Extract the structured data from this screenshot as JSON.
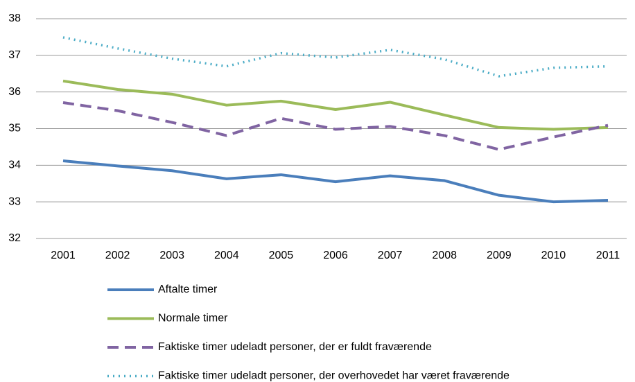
{
  "chart_data": {
    "type": "line",
    "categories": [
      "2001",
      "2002",
      "2003",
      "2004",
      "2005",
      "2006",
      "2007",
      "2008",
      "2009",
      "2010",
      "2011"
    ],
    "series": [
      {
        "name": "Aftalte timer",
        "color": "#4a7ebb",
        "dash": "solid",
        "values": [
          34.12,
          33.98,
          33.85,
          33.63,
          33.74,
          33.55,
          33.71,
          33.58,
          33.18,
          33.0,
          33.04
        ]
      },
      {
        "name": "Normale timer",
        "color": "#9bbb59",
        "dash": "solid",
        "values": [
          36.3,
          36.07,
          35.94,
          35.64,
          35.75,
          35.52,
          35.72,
          35.37,
          35.03,
          34.98,
          35.03
        ]
      },
      {
        "name": "Faktiske timer udeladt personer, der er fuldt fraværende",
        "color": "#8064a2",
        "dash": "dashed",
        "values": [
          35.71,
          35.49,
          35.17,
          34.81,
          35.28,
          34.98,
          35.06,
          34.81,
          34.43,
          34.77,
          35.09
        ]
      },
      {
        "name": "Faktiske timer udeladt personer, der overhovedet har været fraværende",
        "color": "#4bacc6",
        "dash": "dotted",
        "values": [
          37.49,
          37.19,
          36.91,
          36.7,
          37.06,
          36.94,
          37.15,
          36.89,
          36.43,
          36.66,
          36.7
        ]
      }
    ],
    "ylim": [
      32,
      38
    ],
    "yticks": [
      32,
      33,
      34,
      35,
      36,
      37,
      38
    ],
    "grid": true
  }
}
